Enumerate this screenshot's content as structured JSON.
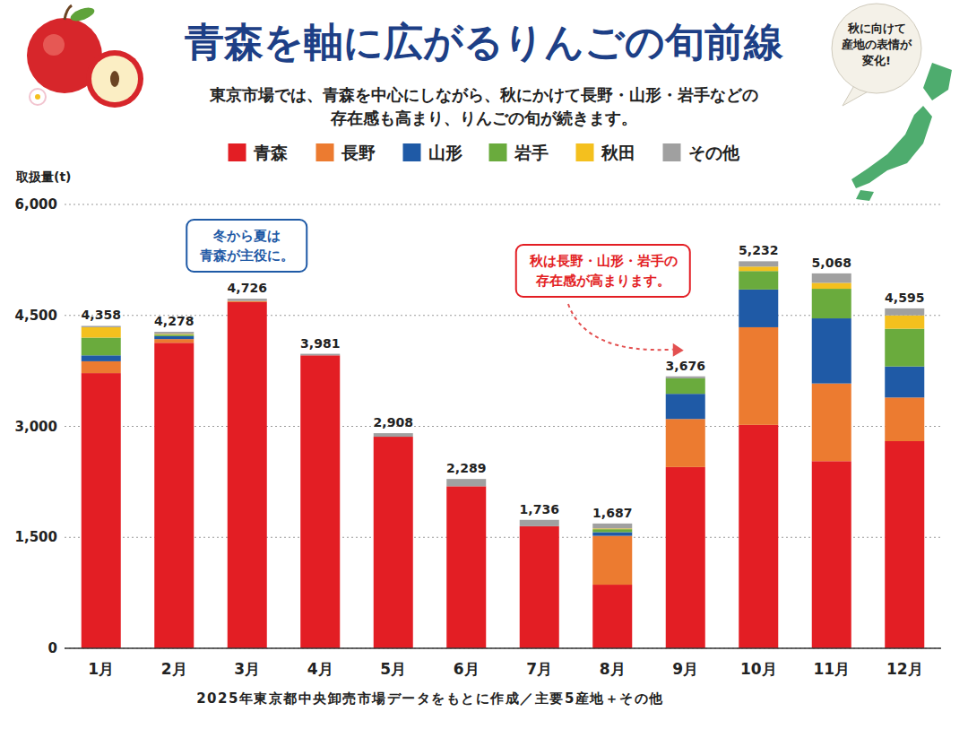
{
  "chart_data": {
    "type": "bar",
    "stacked": true,
    "title": "青森を軸に広がるりんごの旬前線",
    "subtitle": "東京市場では、青森を中心にしながら、秋にかけて長野・山形・岩手などの\n存在感も高まり、りんごの旬が続きます。",
    "annotations": [
      "冬から夏は\n青森が主役に。",
      "秋は長野・山形・岩手の\n存在感が高まります。",
      "秋に向けて\n産地の表情が\n変化!"
    ],
    "y_label": "取扱量(t)",
    "source": "2025年東京都中央卸売市場データをもとに作成／主要5産地＋その他",
    "legend": "top",
    "grid": true,
    "ylim": [
      0,
      6000
    ],
    "yticks": [
      0,
      {
        "value": 1500,
        "label": "1,500"
      },
      {
        "value": 3000,
        "label": "3,000"
      },
      {
        "value": 4500,
        "label": "4,500"
      },
      {
        "value": 6000,
        "label": "6,000"
      }
    ],
    "categories": [
      "1月",
      "2月",
      "3月",
      "4月",
      "5月",
      "6月",
      "7月",
      "8月",
      "9月",
      "10月",
      "11月",
      "12月"
    ],
    "series": [
      {
        "name": "青森",
        "color": "#e31e24",
        "values": [
          3720,
          4130,
          4680,
          3960,
          2860,
          2190,
          1650,
          860,
          2450,
          3020,
          2530,
          2800
        ]
      },
      {
        "name": "長野",
        "color": "#ec7b30",
        "values": [
          160,
          50,
          15,
          0,
          0,
          0,
          0,
          660,
          650,
          1320,
          1050,
          590
        ]
      },
      {
        "name": "山形",
        "color": "#1f5aa6",
        "values": [
          80,
          40,
          0,
          0,
          0,
          0,
          0,
          50,
          340,
          510,
          880,
          420
        ]
      },
      {
        "name": "岩手",
        "color": "#6aab3d",
        "values": [
          240,
          20,
          0,
          0,
          0,
          0,
          0,
          40,
          210,
          250,
          400,
          510
        ]
      },
      {
        "name": "秋田",
        "color": "#f4c01e",
        "values": [
          140,
          10,
          0,
          0,
          0,
          0,
          0,
          10,
          0,
          60,
          80,
          180
        ]
      },
      {
        "name": "その他",
        "color": "#a0a0a0",
        "values": [
          18,
          28,
          31,
          21,
          48,
          99,
          86,
          67,
          26,
          72,
          128,
          95
        ]
      }
    ],
    "totals": [
      4358,
      4278,
      4726,
      3981,
      2908,
      2289,
      1736,
      1687,
      3676,
      5232,
      5068,
      4595
    ],
    "totals_labels": [
      "4,358",
      "4,278",
      "4,726",
      "3,981",
      "2,908",
      "2,289",
      "1,736",
      "1,687",
      "3,676",
      "5,232",
      "5,068",
      "4,595"
    ]
  }
}
